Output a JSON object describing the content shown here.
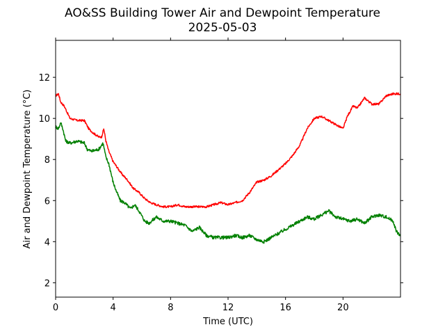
{
  "chart_data": {
    "type": "line",
    "title": "AO&SS Building Tower Air and Dewpoint Temperature",
    "subtitle": "2025-05-03",
    "xlabel": "Time (UTC)",
    "ylabel": "Air and Dewpoint Temperature (°C)",
    "xlim": [
      0,
      24
    ],
    "ylim": [
      1.3,
      13.8
    ],
    "xticks": [
      0,
      4,
      8,
      12,
      16,
      20
    ],
    "yticks": [
      2,
      4,
      6,
      8,
      10,
      12
    ],
    "grid": false,
    "legend": "none",
    "series": [
      {
        "color": "#ff0000",
        "x": [
          0,
          0.2,
          0.35,
          0.6,
          1.0,
          1.5,
          2.0,
          2.3,
          2.6,
          3.0,
          3.2,
          3.35,
          3.5,
          3.7,
          4.0,
          4.3,
          4.6,
          5.0,
          5.4,
          5.8,
          6.2,
          6.6,
          7.0,
          7.5,
          8.0,
          8.5,
          9.0,
          9.5,
          10.0,
          10.5,
          11.0,
          11.5,
          12.0,
          12.5,
          13.0,
          13.5,
          14.0,
          14.5,
          15.0,
          15.5,
          16.0,
          16.5,
          17.0,
          17.5,
          18.0,
          18.5,
          19.0,
          19.5,
          20.0,
          20.3,
          20.7,
          21.0,
          21.5,
          22.0,
          22.5,
          23.0,
          23.5,
          24.0
        ],
        "y": [
          11.1,
          11.2,
          10.8,
          10.6,
          10.0,
          9.9,
          9.9,
          9.5,
          9.3,
          9.1,
          9.1,
          9.5,
          8.9,
          8.4,
          7.9,
          7.6,
          7.3,
          7.0,
          6.6,
          6.4,
          6.1,
          5.9,
          5.8,
          5.7,
          5.7,
          5.8,
          5.7,
          5.7,
          5.7,
          5.7,
          5.8,
          5.9,
          5.8,
          5.9,
          6.0,
          6.4,
          6.9,
          7.0,
          7.2,
          7.5,
          7.8,
          8.2,
          8.7,
          9.5,
          10.0,
          10.1,
          9.9,
          9.7,
          9.5,
          10.1,
          10.6,
          10.5,
          11.0,
          10.7,
          10.7,
          11.1,
          11.2,
          11.2
        ]
      },
      {
        "color": "#008000",
        "x": [
          0,
          0.2,
          0.35,
          0.5,
          0.7,
          1.0,
          1.5,
          2.0,
          2.2,
          2.5,
          3.0,
          3.3,
          3.5,
          3.7,
          4.0,
          4.2,
          4.5,
          4.8,
          5.2,
          5.5,
          5.8,
          6.2,
          6.5,
          7.0,
          7.5,
          8.0,
          8.5,
          9.0,
          9.5,
          10.0,
          10.5,
          11.0,
          11.5,
          12.0,
          12.5,
          13.0,
          13.5,
          14.0,
          14.5,
          15.0,
          15.5,
          16.0,
          16.5,
          17.0,
          17.5,
          18.0,
          18.5,
          19.0,
          19.5,
          20.0,
          20.5,
          21.0,
          21.5,
          22.0,
          22.5,
          23.0,
          23.5,
          23.7,
          24.0
        ],
        "y": [
          9.6,
          9.5,
          9.8,
          9.5,
          8.9,
          8.8,
          8.9,
          8.8,
          8.5,
          8.4,
          8.5,
          8.8,
          8.1,
          7.8,
          6.9,
          6.5,
          6.0,
          5.9,
          5.6,
          5.8,
          5.5,
          5.0,
          4.9,
          5.2,
          5.0,
          5.0,
          4.9,
          4.8,
          4.5,
          4.7,
          4.3,
          4.2,
          4.2,
          4.2,
          4.3,
          4.2,
          4.3,
          4.1,
          4.0,
          4.2,
          4.4,
          4.6,
          4.8,
          5.0,
          5.2,
          5.1,
          5.3,
          5.5,
          5.2,
          5.1,
          5.0,
          5.1,
          4.9,
          5.2,
          5.3,
          5.2,
          5.0,
          4.5,
          4.3
        ]
      }
    ]
  }
}
